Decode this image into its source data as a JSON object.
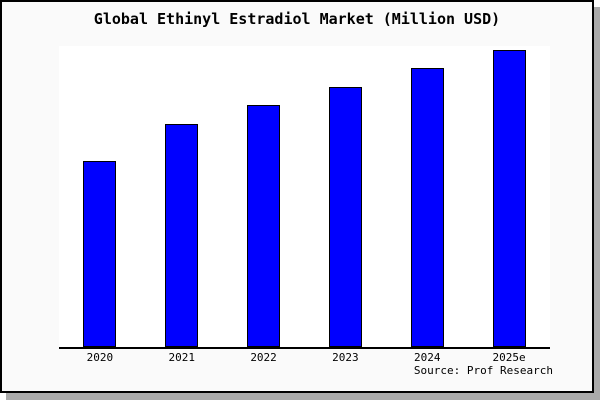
{
  "page": {
    "background": "#ffffff",
    "card_background": "#fafafa",
    "card_border_color": "#000000",
    "card_shadow_color": "#aaaaaa"
  },
  "chart_data": {
    "type": "bar",
    "title": "Global Ethinyl Estradiol Market (Million USD)",
    "categories": [
      "2020",
      "2021",
      "2022",
      "2023",
      "2024",
      "2025e"
    ],
    "values": [
      100,
      120,
      130,
      140,
      150,
      160
    ],
    "values_note": "No y-axis tick labels are shown in the image; values are relative estimates from bar heights with 2020 indexed to 100",
    "ylim": [
      0,
      162
    ],
    "xlabel": "",
    "ylabel": "",
    "grid": false,
    "legend": false,
    "bar_color": "#0000ff",
    "bar_border_color": "#000000",
    "axis_line_color": "#000000",
    "source": "Source: Prof Research"
  }
}
